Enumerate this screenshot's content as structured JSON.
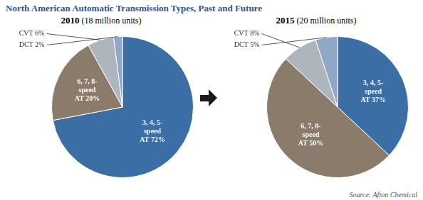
{
  "title": "North American Automatic Transmission Types, Past and Future",
  "annotations": [
    "Source: Afton Chemical"
  ],
  "chart_data": [
    {
      "type": "pie",
      "title": "2010",
      "subtitle": " (18 million units)",
      "values": [
        72,
        20,
        6,
        2
      ],
      "value_labels": [
        "3, 4, 5-\nspeed\nAT 72%",
        "6, 7, 8-\nspeed\nAT 20%",
        "CVT 6%",
        "DCT 2%"
      ],
      "colors": [
        "#3A6EA5",
        "#8B7B6B",
        "#ADB5BD",
        "#8FA8C8"
      ],
      "data_labels": true
    },
    {
      "type": "pie",
      "title": "2015",
      "subtitle": " (20 million units)",
      "values": [
        37,
        50,
        8,
        5
      ],
      "value_labels": [
        "3, 4, 5-\nspeed\nAT 37%",
        "6, 7, 8-\nspeed\nAT 50%",
        "CVT 8%",
        "DCT 5%"
      ],
      "colors": [
        "#3A6EA5",
        "#8B7B6B",
        "#ADB5BD",
        "#8FA8C8"
      ],
      "data_labels": true
    }
  ]
}
